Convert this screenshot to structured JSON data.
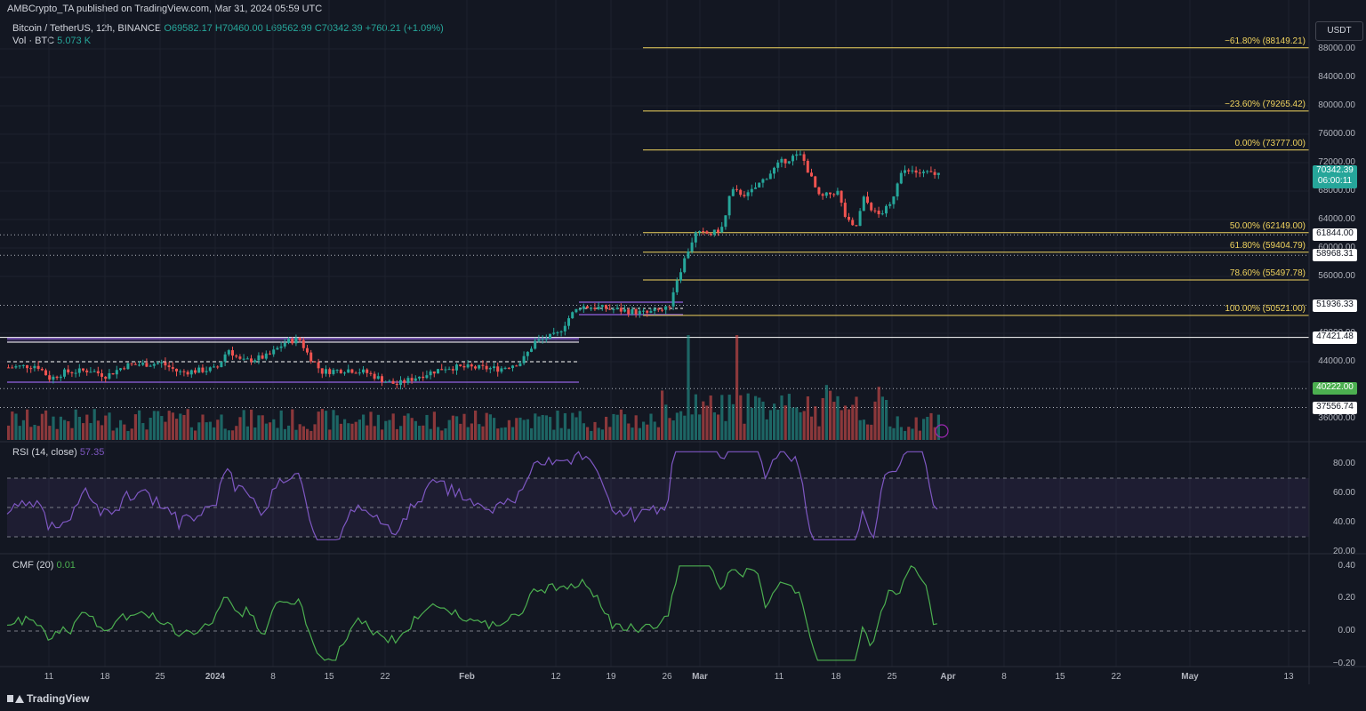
{
  "header": {
    "text": "AMBCrypto_TA published on TradingView.com, Mar 31, 2024 05:59 UTC"
  },
  "symbol": {
    "title": "Bitcoin / TetherUS, 12h, BINANCE",
    "ohlc": "O69582.17 H70460.00 L69562.99 C70342.39 +760.21 (+1.09%)",
    "vol_label": "Vol · BTC",
    "vol_value": "5.073 K"
  },
  "currency": "USDT",
  "price_axis": [
    "88000.00",
    "84000.00",
    "80000.00",
    "76000.00",
    "72000.00",
    "68000.00",
    "64000.00",
    "60000.00",
    "56000.00",
    "48000.00",
    "44000.00",
    "36000.00"
  ],
  "price_tags": [
    {
      "label": "70342.39",
      "sub": "06:00:11",
      "style": "current"
    },
    {
      "label": "61844.00",
      "style": "white"
    },
    {
      "label": "58968.31",
      "style": "white"
    },
    {
      "label": "51936.33",
      "style": "white"
    },
    {
      "label": "47421.48",
      "style": "white"
    },
    {
      "label": "40222.00",
      "style": "green"
    },
    {
      "label": "37556.74",
      "style": "white"
    }
  ],
  "fib_levels": [
    {
      "label": "−61.80% (88149.21)",
      "price": 88149.21
    },
    {
      "label": "−23.60% (79265.42)",
      "price": 79265.42
    },
    {
      "label": "0.00% (73777.00)",
      "price": 73777.0
    },
    {
      "label": "50.00% (62149.00)",
      "price": 62149.0
    },
    {
      "label": "61.80% (59404.79)",
      "price": 59404.79
    },
    {
      "label": "78.60% (55497.78)",
      "price": 55497.78
    },
    {
      "label": "100.00% (50521.00)",
      "price": 50521.0
    }
  ],
  "rsi": {
    "label": "RSI (14, close)",
    "value": "57.35",
    "axis": [
      "80.00",
      "60.00",
      "40.00",
      "20.00"
    ]
  },
  "cmf": {
    "label": "CMF (20)",
    "value": "0.01",
    "axis": [
      "0.40",
      "0.20",
      "0.00",
      "−0.20"
    ]
  },
  "time_axis": [
    "11",
    "18",
    "25",
    "2024",
    "8",
    "15",
    "22",
    "Feb",
    "12",
    "19",
    "26",
    "Mar",
    "11",
    "18",
    "25",
    "Apr",
    "8",
    "15",
    "22",
    "May",
    "13"
  ],
  "colors": {
    "bg": "#131722",
    "up": "#26a69a",
    "down": "#ef5350",
    "fib": "#f0d35e",
    "purple": "#7e57c2",
    "rsi": "#7e57c2",
    "cmf": "#4caf50"
  },
  "footer": {
    "brand": "TradingView"
  }
}
